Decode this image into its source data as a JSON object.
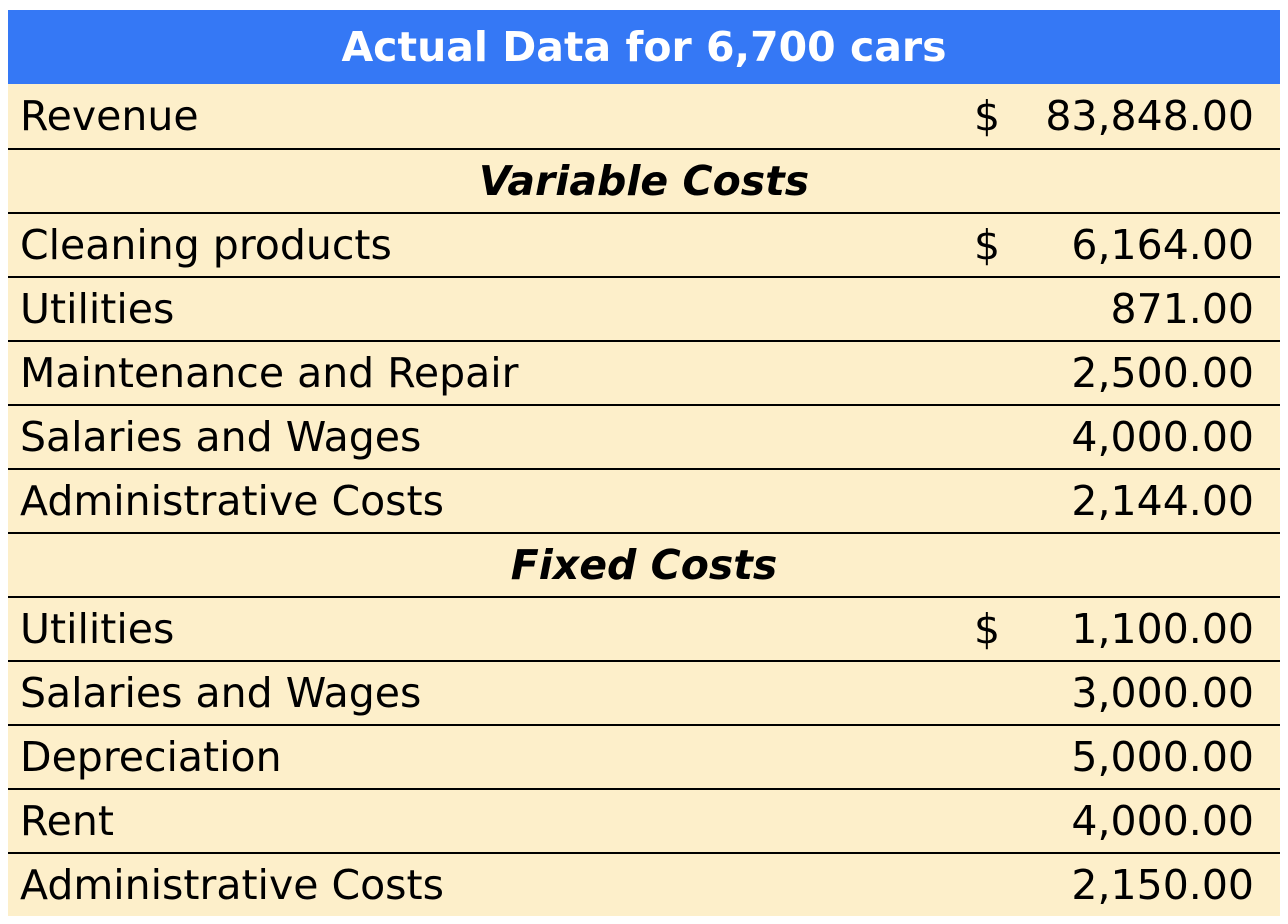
{
  "title": "Actual Data for 6,700 cars",
  "revenue": {
    "label": "Revenue",
    "currency": "$",
    "amount": "83,848.00"
  },
  "variable_costs": {
    "heading": "Variable Costs",
    "items": [
      {
        "label": "Cleaning products",
        "currency": "$",
        "amount": "6,164.00"
      },
      {
        "label": "Utilities",
        "currency": "",
        "amount": "871.00"
      },
      {
        "label": "Maintenance and Repair",
        "currency": "",
        "amount": "2,500.00"
      },
      {
        "label": "Salaries and Wages",
        "currency": "",
        "amount": "4,000.00"
      },
      {
        "label": "Administrative Costs",
        "currency": "",
        "amount": "2,144.00"
      }
    ]
  },
  "fixed_costs": {
    "heading": "Fixed Costs",
    "items": [
      {
        "label": "Utilities",
        "currency": "$",
        "amount": "1,100.00"
      },
      {
        "label": "Salaries and Wages",
        "currency": "",
        "amount": "3,000.00"
      },
      {
        "label": "Depreciation",
        "currency": "",
        "amount": "5,000.00"
      },
      {
        "label": "Rent",
        "currency": "",
        "amount": "4,000.00"
      },
      {
        "label": "Administrative Costs",
        "currency": "",
        "amount": "2,150.00"
      }
    ]
  },
  "colors": {
    "header_bg": "#3578f5",
    "row_bg": "#fdefca",
    "border": "#000000"
  }
}
